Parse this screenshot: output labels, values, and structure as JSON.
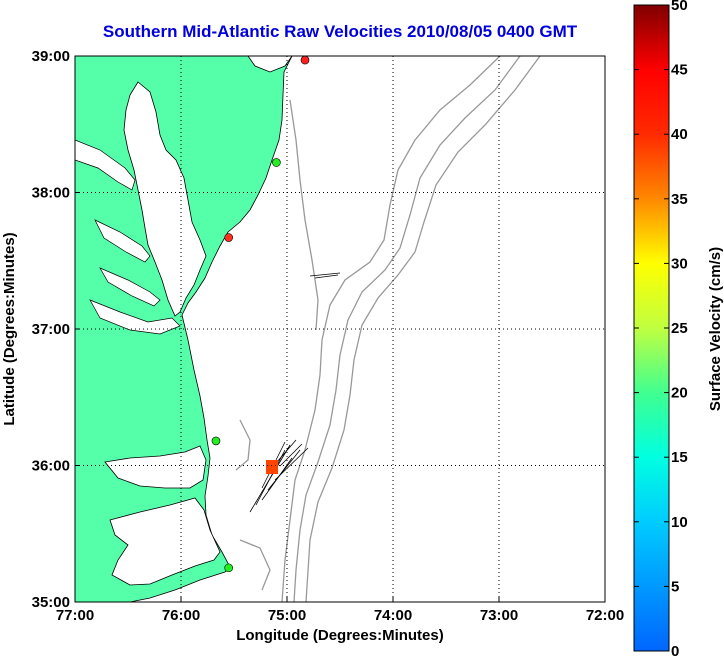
{
  "title": "Southern Mid-Atlantic Raw Velocities 2010/08/05 0400 GMT",
  "x_axis": {
    "label": "Longitude (Degrees:Minutes)",
    "ticks": [
      "77:00",
      "76:00",
      "75:00",
      "74:00",
      "73:00",
      "72:00"
    ]
  },
  "y_axis": {
    "label": "Latitude (Degrees:Minutes)",
    "ticks": [
      "39:00",
      "38:00",
      "37:00",
      "36:00",
      "35:00"
    ]
  },
  "colorbar": {
    "label": "Surface Velocity (cm/s)",
    "min": 0,
    "max": 50,
    "ticks": [
      "50",
      "45",
      "40",
      "35",
      "30",
      "25",
      "20",
      "15",
      "10",
      "5",
      "0"
    ]
  },
  "map": {
    "lon_range": [
      -77,
      -72
    ],
    "lat_range": [
      35,
      39
    ],
    "land_color": "#55ffaa",
    "water_color": "#ffffff",
    "bathymetry_color": "#999999",
    "grid": "dotted"
  },
  "stations": [
    {
      "lon": -74.83,
      "lat": 38.97,
      "color": "#ff2020"
    },
    {
      "lon": -75.1,
      "lat": 38.22,
      "color": "#22ee22"
    },
    {
      "lon": -75.55,
      "lat": 37.67,
      "color": "#ff3020"
    },
    {
      "lon": -75.67,
      "lat": 36.18,
      "color": "#22ee22"
    },
    {
      "lon": -75.55,
      "lat": 35.25,
      "color": "#22ee22"
    }
  ]
}
